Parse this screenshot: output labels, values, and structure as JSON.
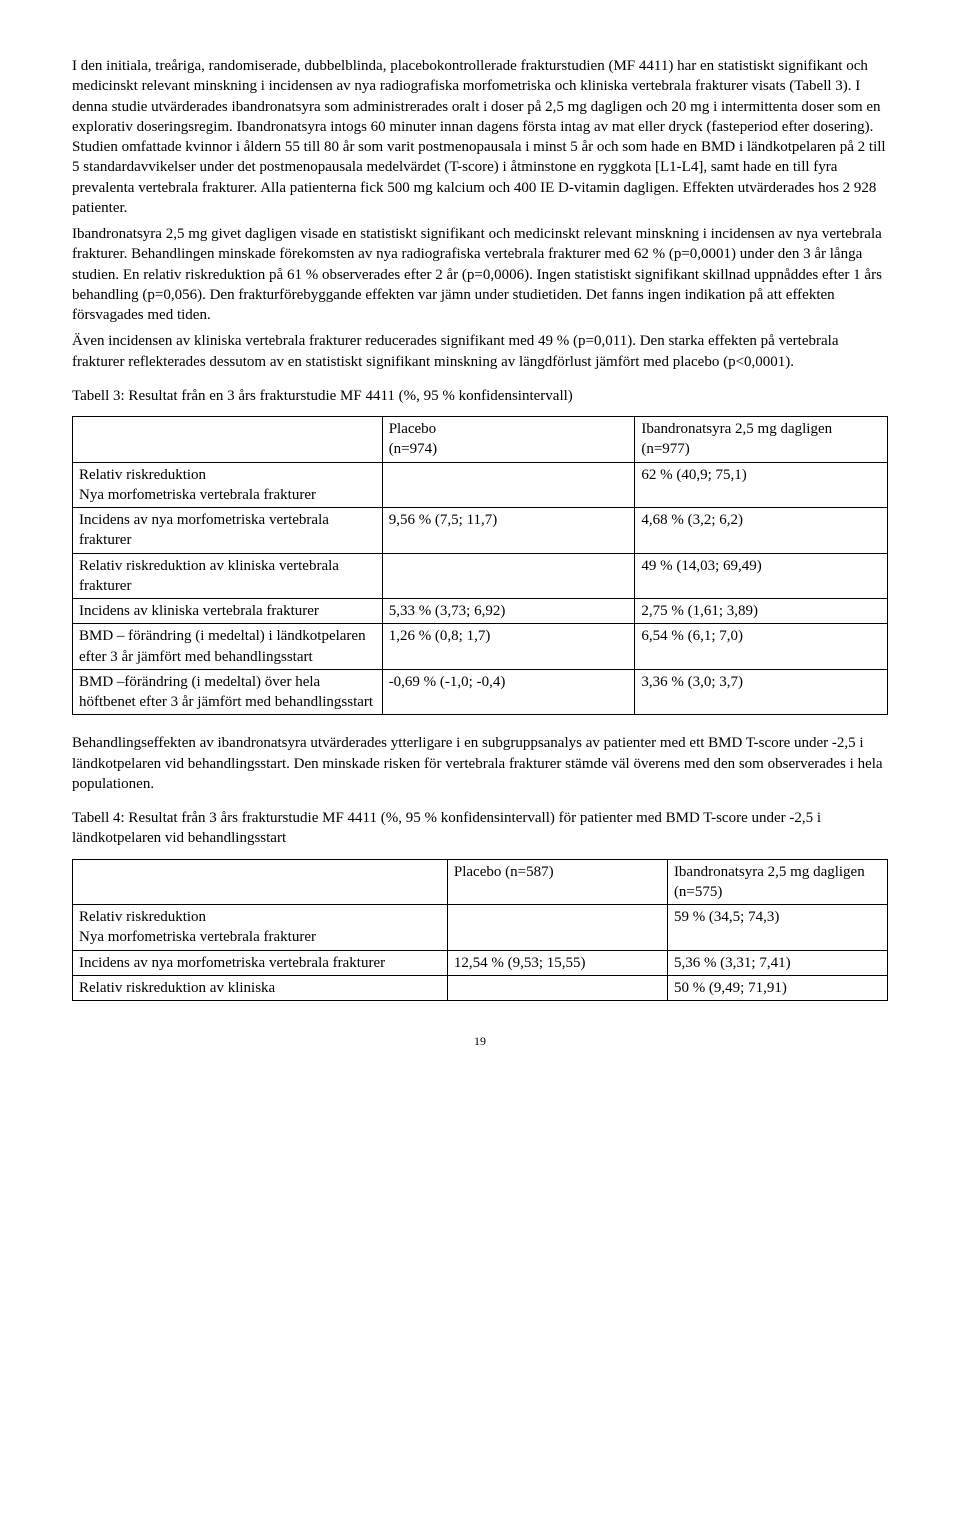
{
  "intro": {
    "p1": "I den initiala, treåriga, randomiserade, dubbelblinda, placebokontrollerade frakturstudien (MF 4411) har en statistiskt signifikant och medicinskt relevant minskning i incidensen av nya radiografiska morfometriska och kliniska vertebrala frakturer visats (Tabell 3). I denna studie utvärderades ibandronatsyra som administrerades oralt i doser på 2,5 mg dagligen och 20 mg i intermittenta doser som en explorativ doseringsregim. Ibandronatsyra intogs 60 minuter innan dagens första intag av mat eller dryck (fasteperiod efter dosering). Studien omfattade kvinnor i åldern 55 till 80 år som varit postmenopausala i minst 5 år och som hade en BMD i ländkotpelaren på 2 till 5 standardavvikelser under det postmenopausala medelvärdet (T-score) i åtminstone en ryggkota [L1-L4], samt hade en till fyra prevalenta vertebrala frakturer. Alla patienterna fick 500 mg kalcium och 400 IE D-vitamin dagligen. Effekten utvärderades hos 2 928 patienter.",
    "p2": "Ibandronatsyra 2,5 mg givet dagligen visade en statistiskt signifikant och medicinskt relevant minskning i incidensen av nya vertebrala frakturer. Behandlingen minskade förekomsten av nya radiografiska vertebrala frakturer med 62 % (p=0,0001) under den 3 år långa studien. En relativ riskreduktion på 61 % observerades efter 2 år (p=0,0006). Ingen statistiskt signifikant skillnad uppnåddes efter 1 års behandling (p=0,056). Den frakturförebyggande effekten var jämn under studietiden. Det fanns ingen indikation på att effekten försvagades med tiden.",
    "p3": "Även incidensen av kliniska vertebrala frakturer reducerades signifikant med 49 % (p=0,011). Den starka effekten på vertebrala frakturer reflekterades dessutom av en statistiskt signifikant minskning av längdförlust jämfört med placebo (p<0,0001)."
  },
  "table3": {
    "title": "Tabell 3: Resultat från en 3 års frakturstudie MF 4411 (%, 95 % konfidensintervall)",
    "head_placebo_l1": "Placebo",
    "head_placebo_l2": "(n=974)",
    "head_ib_l1": "Ibandronatsyra 2,5 mg dagligen",
    "head_ib_l2": "(n=977)",
    "rows": [
      {
        "label": "Relativ riskreduktion\nNya morfometriska vertebrala frakturer",
        "a": "",
        "b": "62 % (40,9; 75,1)"
      },
      {
        "label": "Incidens av nya morfometriska vertebrala frakturer",
        "a": "9,56 % (7,5; 11,7)",
        "b": "4,68 % (3,2; 6,2)"
      },
      {
        "label": "Relativ riskreduktion av kliniska vertebrala frakturer",
        "a": "",
        "b": "49 % (14,03; 69,49)"
      },
      {
        "label": "Incidens av kliniska vertebrala frakturer",
        "a": "5,33 % (3,73; 6,92)",
        "b": "2,75 % (1,61; 3,89)"
      },
      {
        "label": "BMD – förändring (i medeltal) i ländkotpelaren efter 3 år jämfört med behandlingsstart",
        "a": "1,26 % (0,8; 1,7)",
        "b": "6,54 % (6,1; 7,0)"
      },
      {
        "label": "BMD –förändring (i medeltal) över hela höftbenet efter 3 år jämfört med behandlingsstart",
        "a": "-0,69 % (-1,0; -0,4)",
        "b": "3,36 % (3,0; 3,7)"
      }
    ]
  },
  "between_tables": "Behandlingseffekten av ibandronatsyra utvärderades ytterligare i en subgruppsanalys av patienter med ett BMD T-score under -2,5 i ländkotpelaren vid behandlingsstart. Den minskade risken för vertebrala frakturer stämde väl överens med den som observerades i hela populationen.",
  "table4": {
    "title": "Tabell 4: Resultat från 3 års frakturstudie MF 4411 (%, 95 % konfidensintervall) för patienter med BMD T-score under -2,5 i ländkotpelaren vid behandlingsstart",
    "head_placebo": "Placebo (n=587)",
    "head_ib_l1": "Ibandronatsyra 2,5 mg dagligen",
    "head_ib_l2": "(n=575)",
    "rows": [
      {
        "label": "Relativ riskreduktion\nNya morfometriska vertebrala frakturer",
        "a": "",
        "b": "59 % (34,5; 74,3)"
      },
      {
        "label": "Incidens av nya morfometriska vertebrala frakturer",
        "a": "12,54 % (9,53; 15,55)",
        "b": "5,36 % (3,31; 7,41)"
      },
      {
        "label": "Relativ riskreduktion av kliniska",
        "a": "",
        "b": "50 % (9,49; 71,91)"
      }
    ]
  },
  "page_number": "19"
}
